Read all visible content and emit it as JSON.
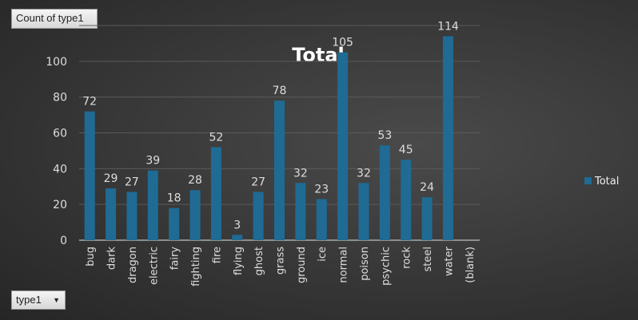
{
  "field_button": "Count of type1",
  "axis_field_button": "type1",
  "chart_data": {
    "type": "bar",
    "title": "Total",
    "categories": [
      "bug",
      "dark",
      "dragon",
      "electric",
      "fairy",
      "fighting",
      "fire",
      "flying",
      "ghost",
      "grass",
      "ground",
      "ice",
      "normal",
      "poison",
      "psychic",
      "rock",
      "steel",
      "water",
      "(blank)"
    ],
    "series": [
      {
        "name": "Total",
        "values": [
          72,
          29,
          27,
          39,
          18,
          28,
          52,
          3,
          27,
          78,
          32,
          23,
          105,
          32,
          53,
          45,
          24,
          114,
          null
        ],
        "color": "#1f6b94"
      }
    ],
    "ylim": [
      0,
      120
    ],
    "yticks": [
      0,
      20,
      40,
      60,
      80,
      100
    ],
    "grid": true,
    "legend": "right",
    "data_labels": true
  }
}
